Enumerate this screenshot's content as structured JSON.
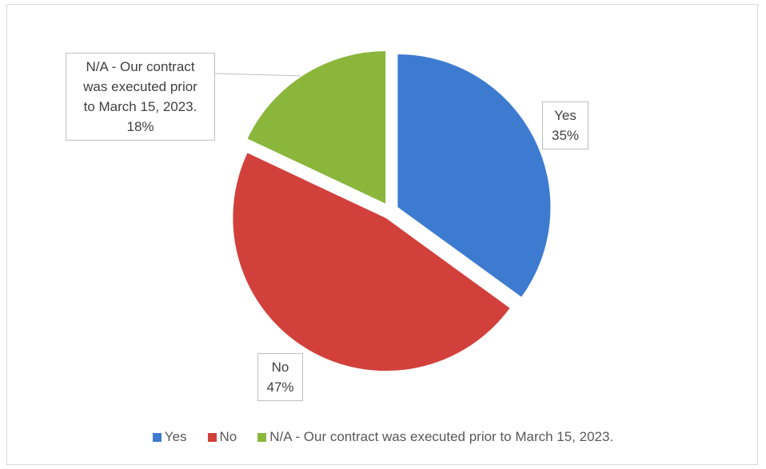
{
  "chart_data": {
    "type": "pie",
    "categories": [
      "Yes",
      "No",
      "N/A - Our contract was executed prior to March 15, 2023."
    ],
    "values": [
      35,
      47,
      18
    ],
    "value_labels": [
      "35%",
      "47%",
      "18%"
    ],
    "colors": [
      "#3d7bd0",
      "#d2403b",
      "#8bb63c"
    ],
    "legend": "bottom"
  }
}
